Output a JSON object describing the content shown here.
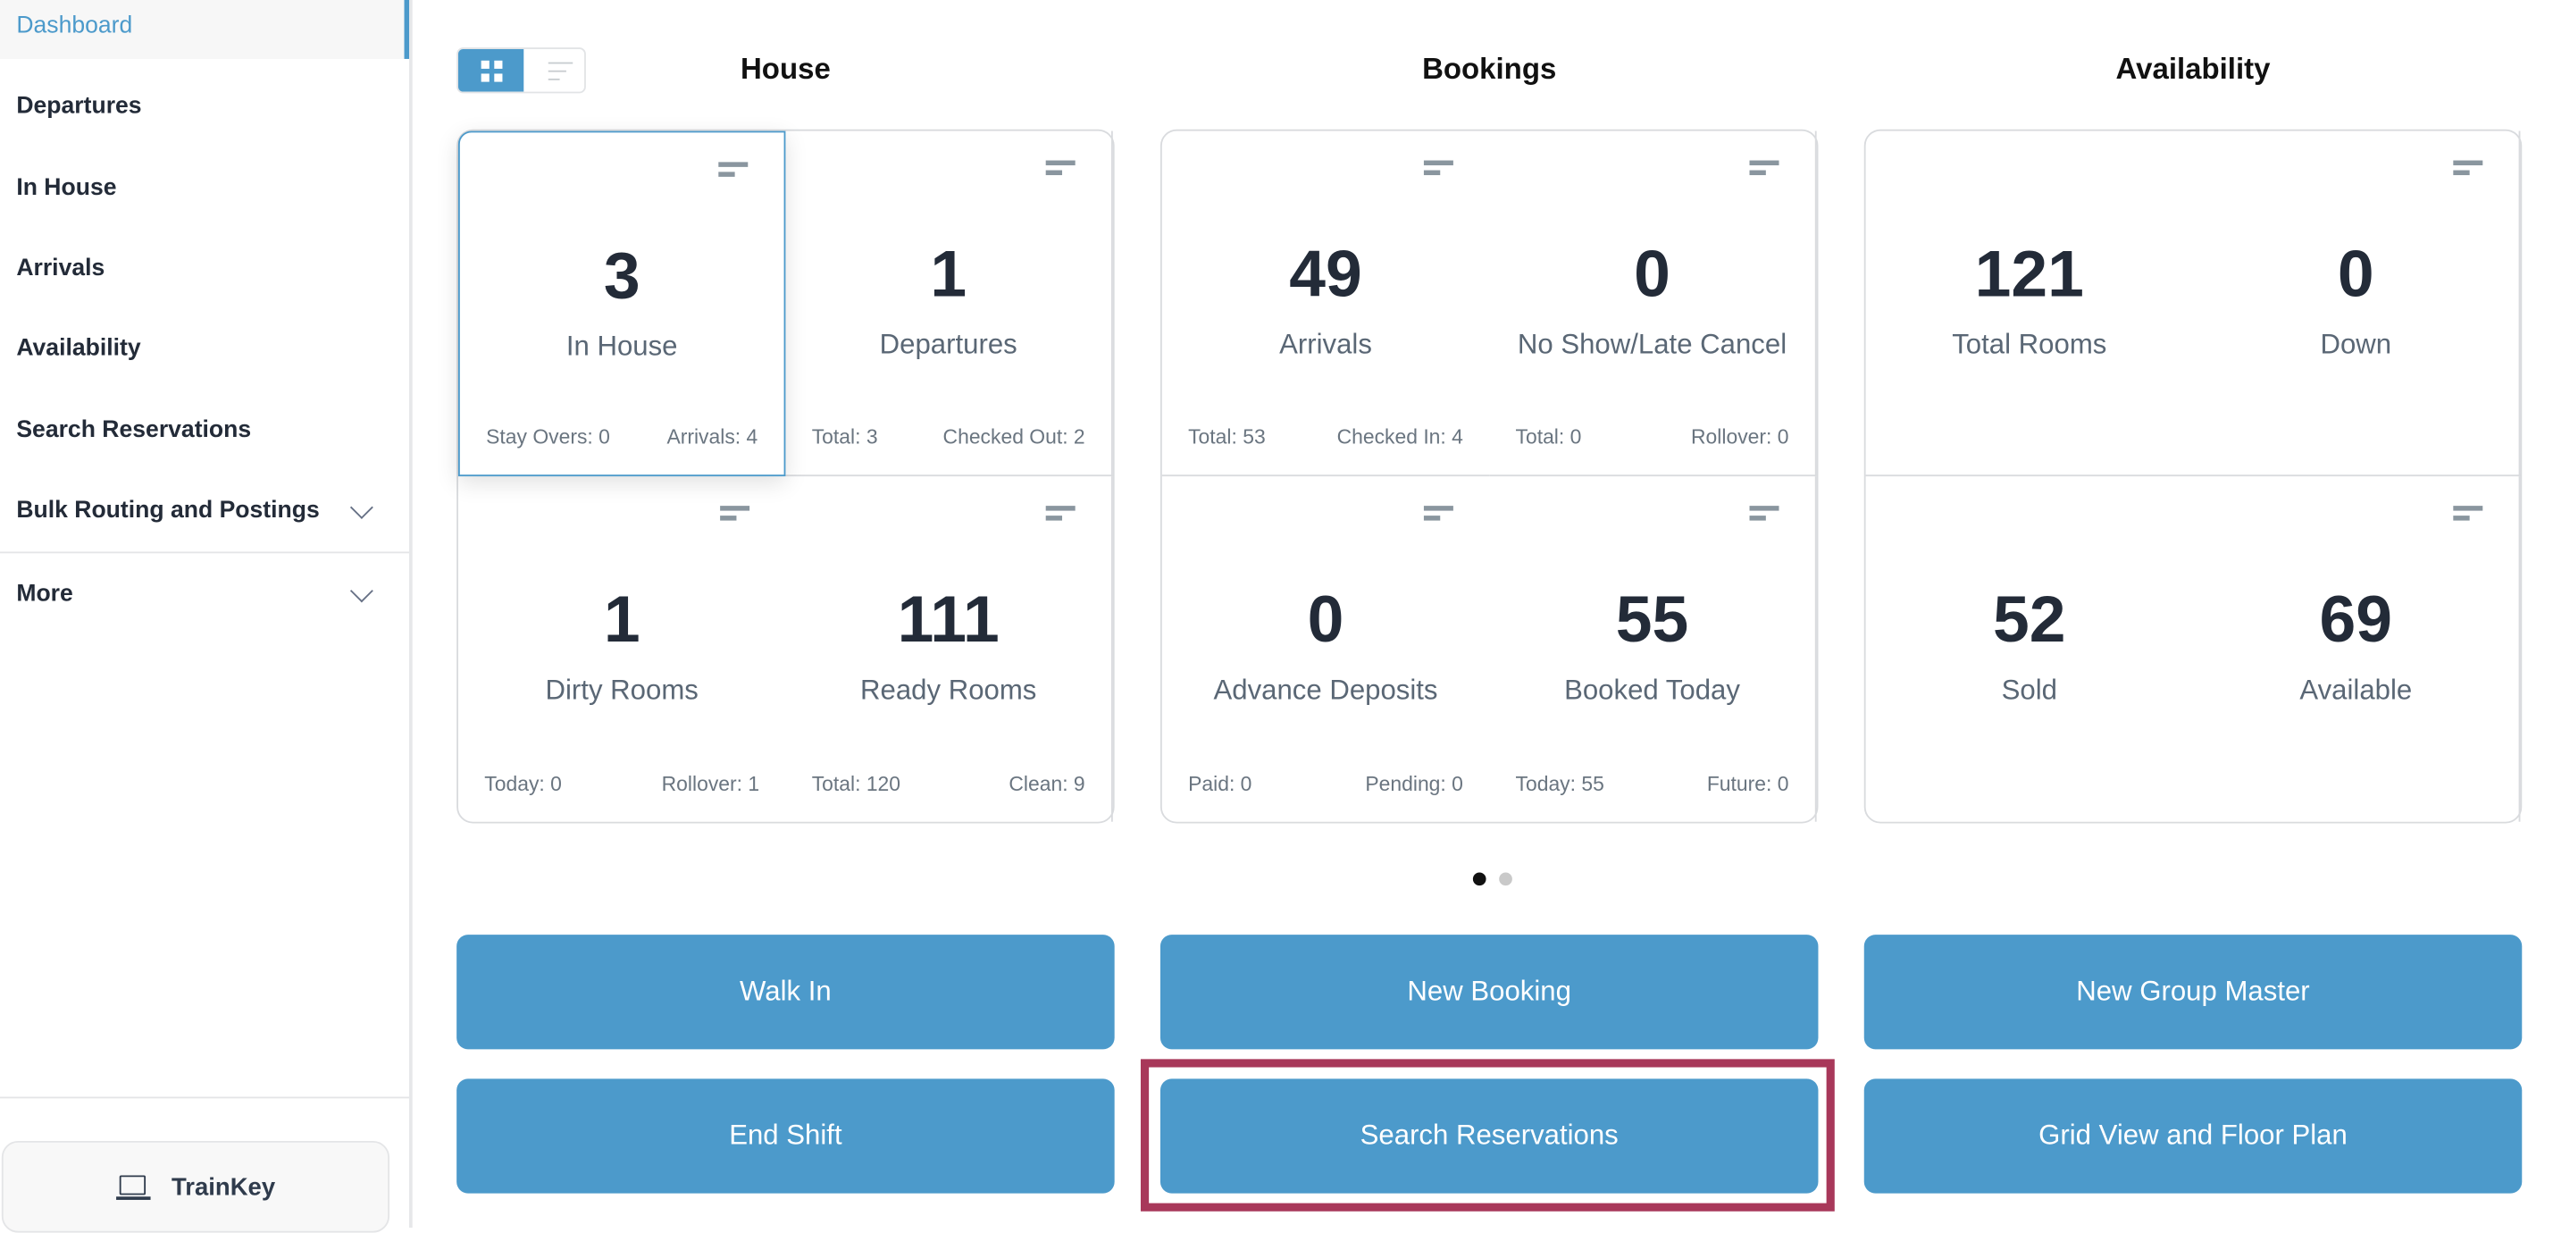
{
  "sidebar": {
    "items": [
      {
        "label": "Dashboard",
        "active": true
      },
      {
        "label": "Departures"
      },
      {
        "label": "In House"
      },
      {
        "label": "Arrivals"
      },
      {
        "label": "Availability"
      },
      {
        "label": "Search Reservations"
      },
      {
        "label": "Bulk Routing and Postings",
        "expandable": true
      },
      {
        "label": "More",
        "expandable": true
      }
    ],
    "trainkey_label": "TrainKey"
  },
  "view_toggle": {
    "selected": "grid"
  },
  "panels": [
    {
      "title": "House",
      "cells": [
        {
          "value": "3",
          "label": "In House",
          "footer_left": "Stay Overs: 0",
          "footer_right": "Arrivals: 4",
          "menu": true,
          "selected": true
        },
        {
          "value": "1",
          "label": "Departures",
          "footer_left": "Total: 3",
          "footer_right": "Checked Out: 2",
          "menu": true
        },
        {
          "value": "1",
          "label": "Dirty Rooms",
          "footer_left": "Today: 0",
          "footer_right": "Rollover: 1",
          "menu": true
        },
        {
          "value": "111",
          "label": "Ready Rooms",
          "footer_left": "Total: 120",
          "footer_right": "Clean: 9",
          "menu": true
        }
      ]
    },
    {
      "title": "Bookings",
      "cells": [
        {
          "value": "49",
          "label": "Arrivals",
          "footer_left": "Total: 53",
          "footer_right": "Checked In: 4",
          "menu": true
        },
        {
          "value": "0",
          "label": "No Show/Late Cancel",
          "footer_left": "Total: 0",
          "footer_right": "Rollover: 0",
          "menu": true
        },
        {
          "value": "0",
          "label": "Advance Deposits",
          "footer_left": "Paid: 0",
          "footer_right": "Pending: 0",
          "menu": true
        },
        {
          "value": "55",
          "label": "Booked Today",
          "footer_left": "Today: 55",
          "footer_right": "Future: 0",
          "menu": true
        }
      ]
    },
    {
      "title": "Availability",
      "cells": [
        {
          "value": "121",
          "label": "Total Rooms",
          "menu": false
        },
        {
          "value": "0",
          "label": "Down",
          "menu": true
        },
        {
          "value": "52",
          "label": "Sold",
          "menu": false
        },
        {
          "value": "69",
          "label": "Available",
          "menu": true
        }
      ]
    }
  ],
  "pagination": {
    "pages": 2,
    "current": 1
  },
  "actions": [
    {
      "label": "Walk In"
    },
    {
      "label": "New Booking"
    },
    {
      "label": "New Group Master"
    },
    {
      "label": "End Shift"
    },
    {
      "label": "Search Reservations",
      "highlighted": true
    },
    {
      "label": "Grid View and Floor Plan"
    }
  ],
  "colors": {
    "accent": "#4c9acb",
    "highlight": "#a8385a",
    "text": "#232b38"
  }
}
